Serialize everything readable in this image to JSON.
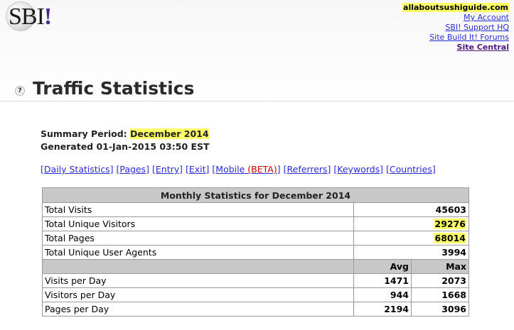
{
  "logo": {
    "text": "SBI",
    "bang": "!"
  },
  "top_links": {
    "site": "allaboutsushiguide.com",
    "my_account": "My Account",
    "support_hq": "SBI! Support HQ",
    "forums": "Site Build It! Forums",
    "site_central": "Site Central"
  },
  "help_icon": "?",
  "title": "Traffic Statistics",
  "summary": {
    "period_label": "Summary Period:",
    "period_value": "December 2014",
    "generated": "Generated 01-Jan-2015 03:50 EST"
  },
  "nav": {
    "daily": "[Daily Statistics]",
    "pages": "[Pages]",
    "entry": "[Entry]",
    "exit": "[Exit]",
    "mobile": "[Mobile",
    "beta": "(BETA)",
    "mobile_close": "]",
    "referrers": "[Referrers]",
    "keywords": "[Keywords]",
    "countries": "[Countries]"
  },
  "table": {
    "heading": "Monthly Statistics for December 2014",
    "rows": [
      {
        "label": "Total Visits",
        "value": "45603"
      },
      {
        "label": "Total Unique Visitors",
        "value": "29276"
      },
      {
        "label": "Total Pages",
        "value": "68014"
      },
      {
        "label": "Total Unique User Agents",
        "value": "3994"
      }
    ],
    "avg_label": "Avg",
    "max_label": "Max",
    "daily_rows": [
      {
        "label": "Visits per Day",
        "avg": "1471",
        "max": "2073"
      },
      {
        "label": "Visitors per Day",
        "avg": "944",
        "max": "1668"
      },
      {
        "label": "Pages per Day",
        "avg": "2194",
        "max": "3096"
      }
    ]
  }
}
